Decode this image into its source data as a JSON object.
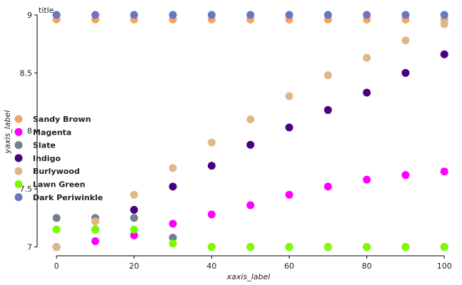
{
  "chart_data": {
    "type": "scatter",
    "title": "title",
    "xlabel": "xaxis_label",
    "ylabel": "yaxis_label",
    "xlim": [
      -5,
      104
    ],
    "ylim": [
      6.93,
      9.03
    ],
    "x_ticks": [
      0,
      20,
      40,
      60,
      80,
      100
    ],
    "y_ticks": [
      7,
      7.5,
      8,
      8.5,
      9
    ],
    "y_tick_labels": [
      "7",
      "7.5",
      "8",
      "8.5",
      "9"
    ],
    "grid": false,
    "legend_position": "left",
    "x": [
      0,
      10,
      20,
      30,
      40,
      50,
      60,
      70,
      80,
      90,
      100
    ],
    "series": [
      {
        "name": "Sandy Brown",
        "color": "#F4A460",
        "values": [
          8.96,
          8.96,
          8.96,
          8.96,
          8.96,
          8.96,
          8.96,
          8.96,
          8.96,
          8.96,
          8.96
        ]
      },
      {
        "name": "Magenta",
        "color": "#FF00FF",
        "values": [
          7.0,
          7.05,
          7.1,
          7.2,
          7.28,
          7.36,
          7.45,
          7.52,
          7.58,
          7.62,
          7.65
        ]
      },
      {
        "name": "Slate",
        "color": "#708090",
        "values": [
          7.25,
          7.25,
          7.25,
          7.08,
          7.0,
          7.0,
          7.0,
          7.0,
          7.0,
          7.0,
          7.0
        ]
      },
      {
        "name": "Indigo",
        "color": "#4B0082",
        "values": [
          7.0,
          7.15,
          7.32,
          7.52,
          7.7,
          7.88,
          8.03,
          8.18,
          8.33,
          8.5,
          8.66
        ]
      },
      {
        "name": "Burlywood",
        "color": "#DEB887",
        "values": [
          7.0,
          7.22,
          7.45,
          7.68,
          7.9,
          8.1,
          8.3,
          8.48,
          8.63,
          8.78,
          8.92
        ]
      },
      {
        "name": "Lawn Green",
        "color": "#7CFC00",
        "values": [
          7.15,
          7.15,
          7.15,
          7.03,
          7.0,
          7.0,
          7.0,
          7.0,
          7.0,
          7.0,
          7.0
        ]
      },
      {
        "name": "Dark Periwinkle",
        "color": "#6878BE",
        "values": [
          9.0,
          9.0,
          9.0,
          9.0,
          9.0,
          9.0,
          9.0,
          9.0,
          9.0,
          9.0,
          9.0
        ]
      }
    ]
  }
}
